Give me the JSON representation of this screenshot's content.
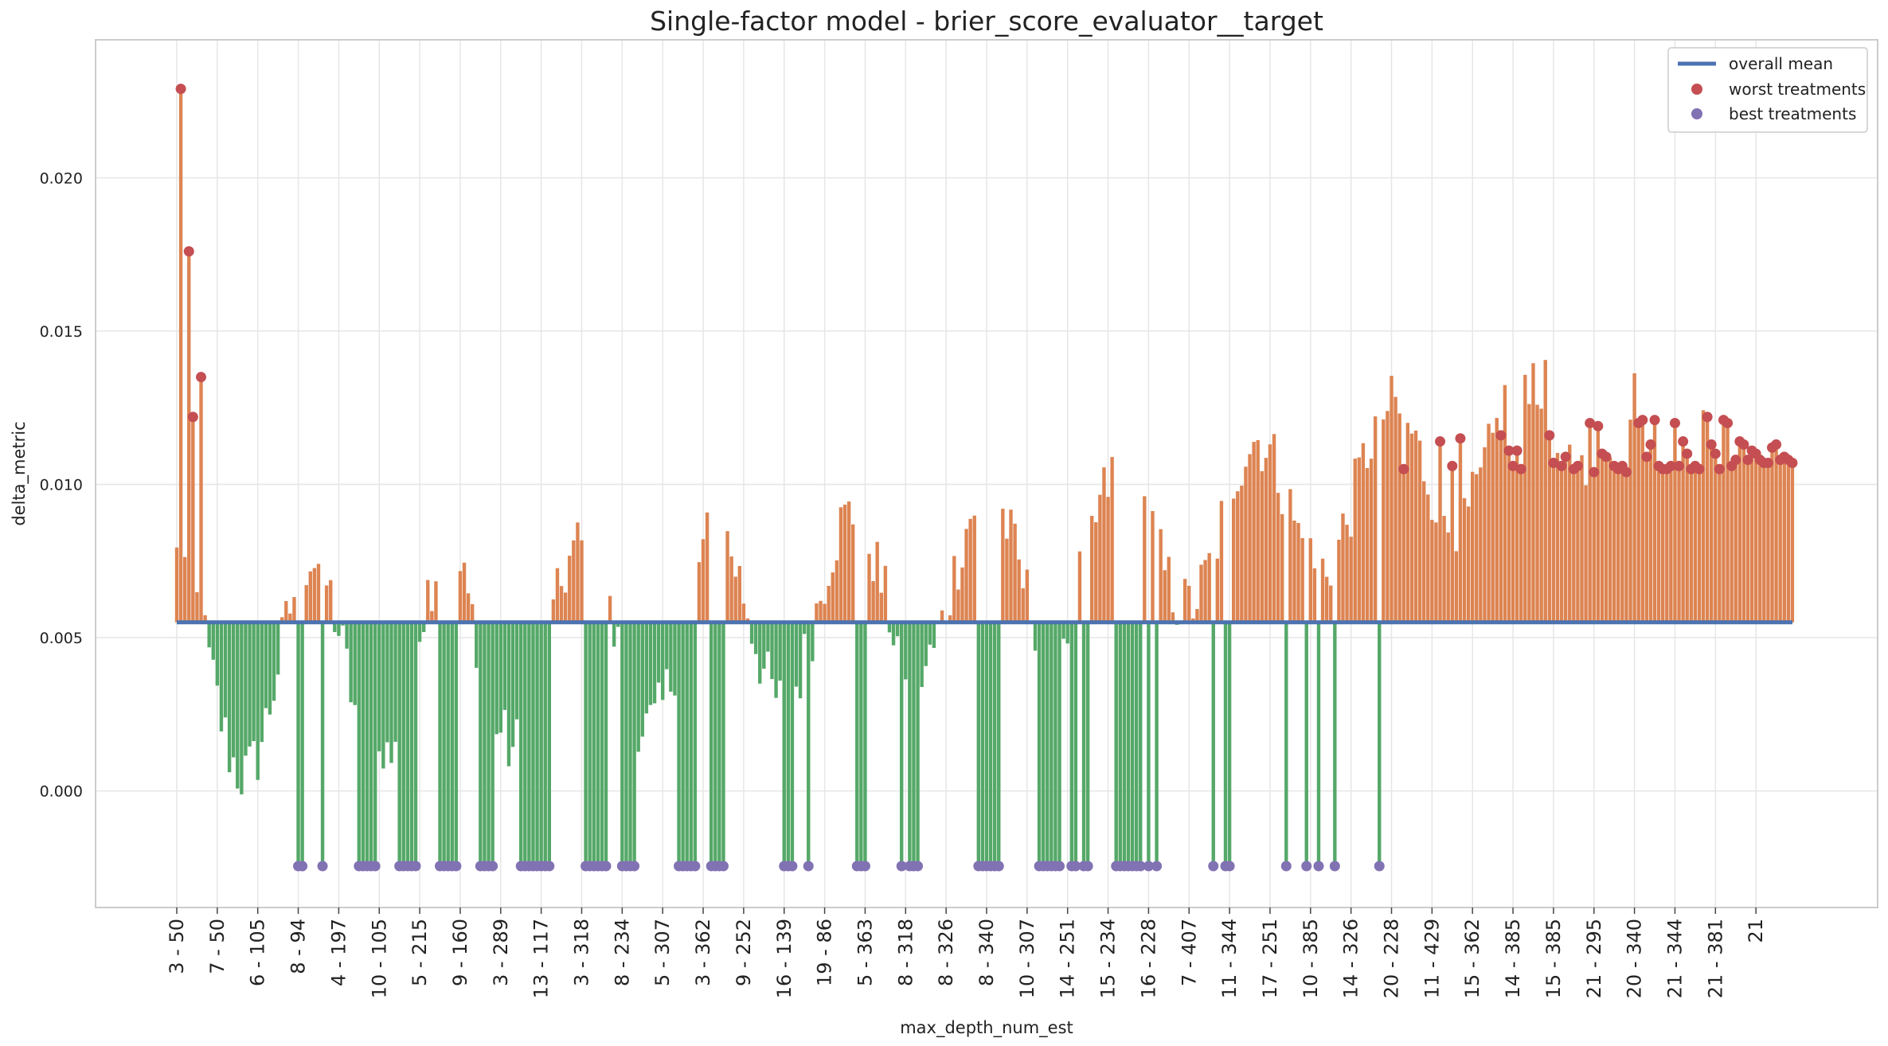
{
  "chart_data": {
    "type": "bar",
    "title": "Single-factor model - brier_score_evaluator__target",
    "xlabel": "max_depth_num_est",
    "ylabel": "delta_metric",
    "ylim": [
      -0.0038,
      0.0245
    ],
    "yticks": [
      0.0,
      0.005,
      0.01,
      0.015,
      0.02
    ],
    "ytick_labels": [
      "0.000",
      "0.005",
      "0.010",
      "0.015",
      "0.020"
    ],
    "xtick_labels": [
      "3 - 50",
      "7 - 50",
      "6 - 105",
      "8 - 94",
      "4 - 197",
      "10 - 105",
      "5 - 215",
      "9 - 160",
      "3 - 289",
      "13 - 117",
      "3 - 318",
      "8 - 234",
      "5 - 307",
      "3 - 362",
      "9 - 252",
      "16 - 139",
      "19 - 86",
      "5 - 363",
      "8 - 318",
      "8 - 326",
      "8 - 340",
      "10 - 307",
      "14 - 251",
      "15 - 234",
      "16 - 228",
      "7 - 407",
      "11 - 344",
      "17 - 251",
      "10 - 385",
      "14 - 326",
      "20 - 228",
      "11 - 429",
      "15 - 362",
      "14 - 385",
      "15 - 385",
      "21 - 295",
      "20 - 340",
      "21 - 344",
      "21 - 381",
      "21"
    ],
    "n_bars": 400,
    "overall_mean": 0.0055,
    "grid": true,
    "legend_position": "upper right",
    "colors": {
      "above_mean": "#dd8452",
      "below_mean": "#55a868",
      "mean_line": "#4c72b0",
      "worst": "#c44e52",
      "best": "#8172b3"
    },
    "legend": [
      {
        "label": "overall mean",
        "kind": "line",
        "color": "#4c72b0"
      },
      {
        "label": "worst treatments",
        "kind": "dot",
        "color": "#c44e52"
      },
      {
        "label": "best treatments",
        "kind": "dot",
        "color": "#8172b3"
      }
    ],
    "worst_treatments": [
      {
        "x": 1,
        "y": 0.0229
      },
      {
        "x": 3,
        "y": 0.0176
      },
      {
        "x": 4,
        "y": 0.0122
      },
      {
        "x": 6,
        "y": 0.0135
      },
      {
        "x": 303,
        "y": 0.0105
      },
      {
        "x": 312,
        "y": 0.0114
      },
      {
        "x": 315,
        "y": 0.0106
      },
      {
        "x": 317,
        "y": 0.0115
      },
      {
        "x": 327,
        "y": 0.0116
      },
      {
        "x": 329,
        "y": 0.0111
      },
      {
        "x": 330,
        "y": 0.0106
      },
      {
        "x": 331,
        "y": 0.0111
      },
      {
        "x": 332,
        "y": 0.0105
      },
      {
        "x": 339,
        "y": 0.0116
      },
      {
        "x": 340,
        "y": 0.0107
      },
      {
        "x": 342,
        "y": 0.0106
      },
      {
        "x": 343,
        "y": 0.0109
      },
      {
        "x": 345,
        "y": 0.0105
      },
      {
        "x": 346,
        "y": 0.0106
      },
      {
        "x": 349,
        "y": 0.012
      },
      {
        "x": 350,
        "y": 0.0104
      },
      {
        "x": 351,
        "y": 0.0119
      },
      {
        "x": 352,
        "y": 0.011
      },
      {
        "x": 353,
        "y": 0.0109
      },
      {
        "x": 355,
        "y": 0.0106
      },
      {
        "x": 356,
        "y": 0.0105
      },
      {
        "x": 357,
        "y": 0.0106
      },
      {
        "x": 358,
        "y": 0.0104
      },
      {
        "x": 361,
        "y": 0.012
      },
      {
        "x": 362,
        "y": 0.0121
      },
      {
        "x": 363,
        "y": 0.0109
      },
      {
        "x": 364,
        "y": 0.0113
      },
      {
        "x": 365,
        "y": 0.0121
      },
      {
        "x": 366,
        "y": 0.0106
      },
      {
        "x": 367,
        "y": 0.0105
      },
      {
        "x": 368,
        "y": 0.0105
      },
      {
        "x": 369,
        "y": 0.0106
      },
      {
        "x": 370,
        "y": 0.012
      },
      {
        "x": 371,
        "y": 0.0106
      },
      {
        "x": 372,
        "y": 0.0114
      },
      {
        "x": 373,
        "y": 0.011
      },
      {
        "x": 374,
        "y": 0.0105
      },
      {
        "x": 375,
        "y": 0.0106
      },
      {
        "x": 376,
        "y": 0.0105
      },
      {
        "x": 378,
        "y": 0.0122
      },
      {
        "x": 379,
        "y": 0.0113
      },
      {
        "x": 380,
        "y": 0.011
      },
      {
        "x": 381,
        "y": 0.0105
      },
      {
        "x": 382,
        "y": 0.0121
      },
      {
        "x": 383,
        "y": 0.012
      },
      {
        "x": 384,
        "y": 0.0106
      },
      {
        "x": 385,
        "y": 0.0108
      },
      {
        "x": 386,
        "y": 0.0114
      },
      {
        "x": 387,
        "y": 0.0113
      },
      {
        "x": 388,
        "y": 0.0108
      },
      {
        "x": 389,
        "y": 0.0111
      },
      {
        "x": 390,
        "y": 0.011
      },
      {
        "x": 391,
        "y": 0.0108
      },
      {
        "x": 392,
        "y": 0.0107
      },
      {
        "x": 393,
        "y": 0.0107
      },
      {
        "x": 394,
        "y": 0.0112
      },
      {
        "x": 395,
        "y": 0.0113
      },
      {
        "x": 396,
        "y": 0.0108
      },
      {
        "x": 397,
        "y": 0.0109
      },
      {
        "x": 398,
        "y": 0.0108
      },
      {
        "x": 399,
        "y": 0.0107
      }
    ],
    "best_treatments_y": -0.00245,
    "best_treatments_x": [
      30,
      31,
      36,
      45,
      46,
      47,
      48,
      49,
      55,
      56,
      57,
      58,
      59,
      65,
      66,
      67,
      68,
      69,
      75,
      76,
      77,
      78,
      85,
      86,
      87,
      88,
      89,
      90,
      91,
      92,
      101,
      102,
      103,
      104,
      105,
      106,
      110,
      111,
      112,
      113,
      124,
      125,
      126,
      127,
      128,
      132,
      133,
      134,
      135,
      150,
      151,
      152,
      156,
      168,
      169,
      170,
      179,
      181,
      182,
      183,
      198,
      199,
      200,
      201,
      202,
      203,
      213,
      214,
      215,
      216,
      217,
      218,
      221,
      222,
      224,
      225,
      232,
      233,
      234,
      235,
      236,
      237,
      238,
      240,
      242,
      256,
      259,
      260,
      274,
      279,
      282,
      286,
      297
    ]
  }
}
